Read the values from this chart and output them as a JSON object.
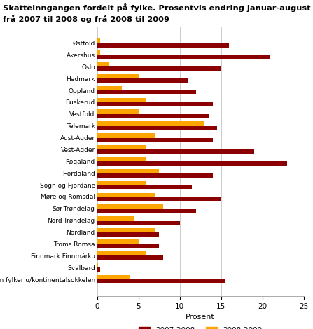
{
  "title_line1": "Skatteinngangen fordelt på fylke. Prosentvis endring januar-august",
  "title_line2": "frå 2007 til 2008 og frå 2008 til 2009",
  "categories": [
    "Østfold",
    "Akershus",
    "Oslo",
    "Hedmark",
    "Oppland",
    "Buskerud",
    "Vestfold",
    "Telemark",
    "Aust-Agder",
    "Vest-Agder",
    "Rogaland",
    "Hordaland",
    "Sogn og Fjordane",
    "Møre og Romsdal",
    "Sør-Trøndelag",
    "Nord-Trøndelag",
    "Nordland",
    "Troms Romsa",
    "Finnmark Finnmárku",
    "Svalbard",
    "Sum fylker u/kontinentalsokkelen"
  ],
  "series_2007_2008": [
    16,
    21,
    15,
    11,
    12,
    14,
    13.5,
    14.5,
    14,
    19,
    23,
    14,
    11.5,
    15,
    12,
    10,
    7.5,
    7.5,
    8,
    0.4,
    15.5
  ],
  "series_2008_2009": [
    0.4,
    0.4,
    1.5,
    5,
    3,
    6,
    5,
    13,
    7,
    6,
    6,
    7.5,
    6,
    7,
    8,
    4.5,
    7,
    5,
    6,
    0.1,
    4
  ],
  "color_2007_2008": "#8B0000",
  "color_2008_2009": "#FFA500",
  "xlabel": "Prosent",
  "xlim": [
    0,
    25
  ],
  "xticks": [
    0,
    5,
    10,
    15,
    20,
    25
  ],
  "legend_labels": [
    "2007-2008",
    "2008-2009"
  ],
  "background_color": "#ffffff",
  "grid_color": "#cccccc"
}
